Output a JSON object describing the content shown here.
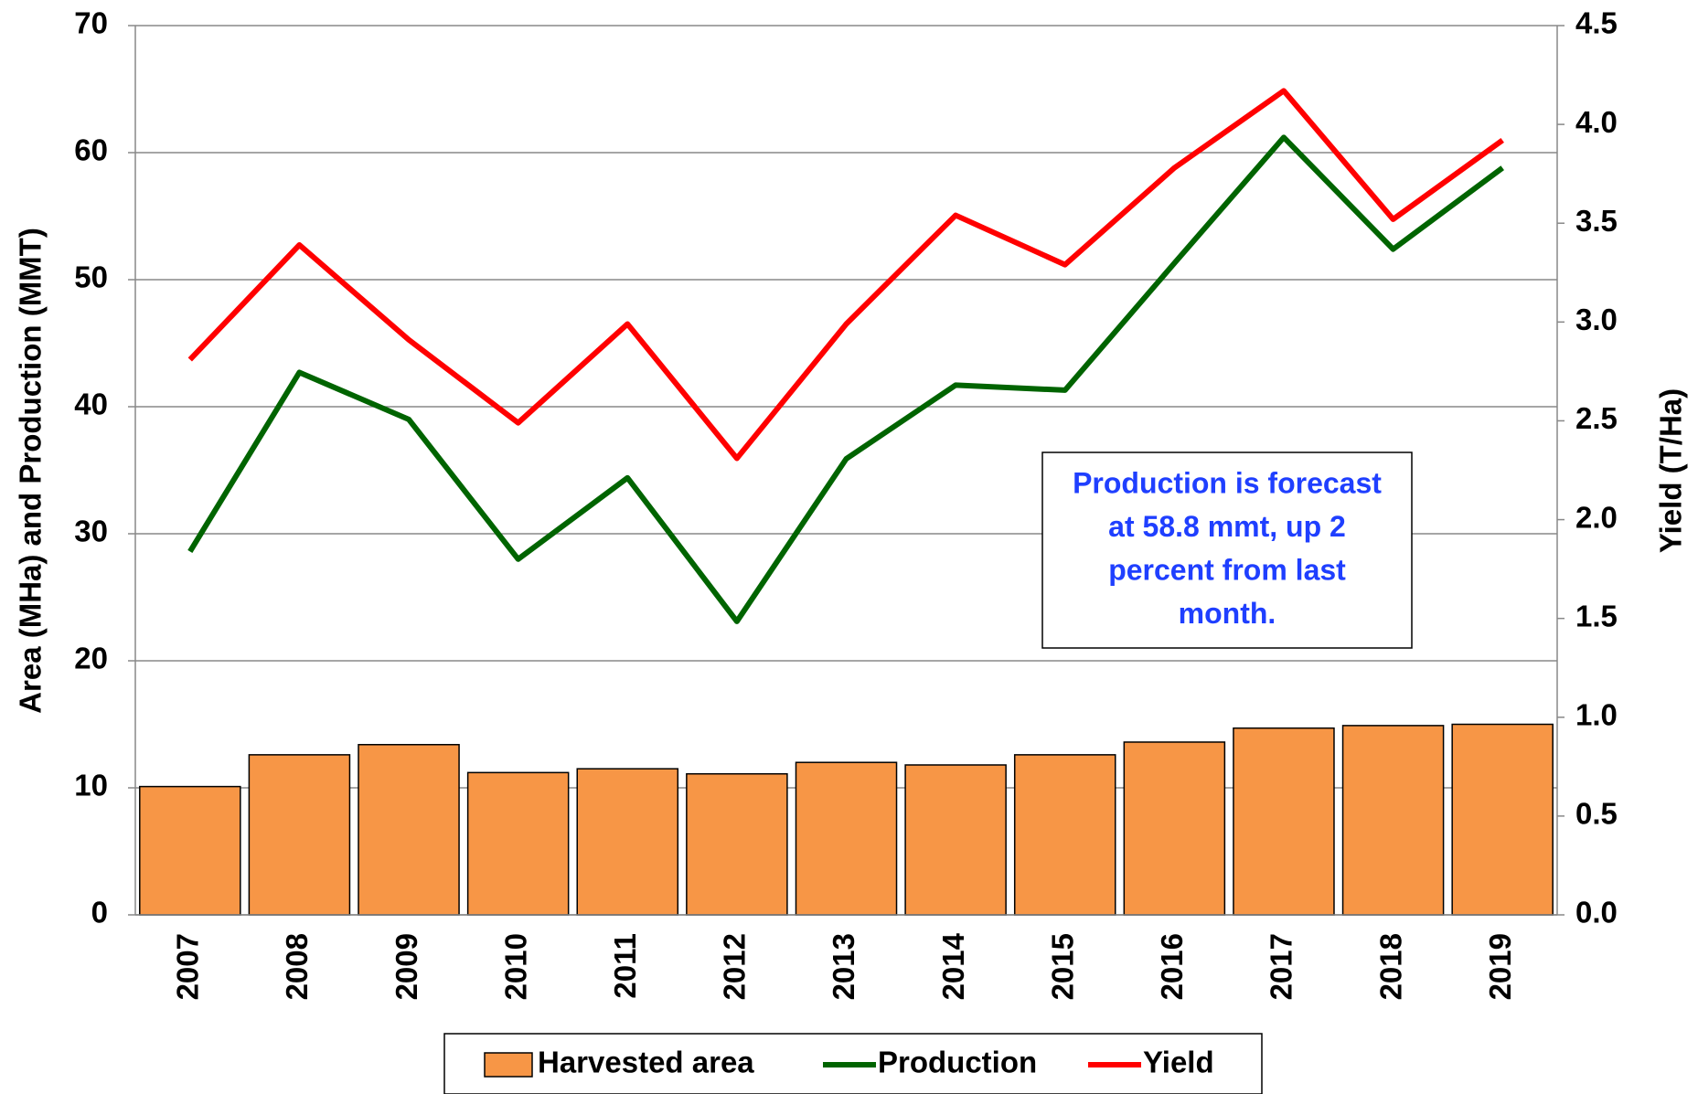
{
  "chart_data": {
    "type": "bar-line",
    "categories": [
      "2007",
      "2008",
      "2009",
      "2010",
      "2011",
      "2012",
      "2013",
      "2014",
      "2015",
      "2016",
      "2017",
      "2018",
      "2019"
    ],
    "series": [
      {
        "name": "Harvested area",
        "type": "bar",
        "color": "#f79646",
        "axis": "y",
        "values": [
          10.1,
          12.6,
          13.4,
          11.2,
          11.5,
          11.1,
          12.0,
          11.8,
          12.6,
          13.6,
          14.7,
          14.9,
          15.0
        ]
      },
      {
        "name": "Production",
        "type": "line",
        "color": "#006400",
        "axis": "y",
        "values": [
          28.6,
          42.7,
          39.0,
          28.0,
          34.4,
          23.1,
          35.9,
          41.7,
          41.3,
          51.3,
          61.2,
          52.4,
          58.8
        ]
      },
      {
        "name": "Yield",
        "type": "line",
        "color": "#ff0000",
        "axis": "y2",
        "values": [
          2.81,
          3.39,
          2.91,
          2.49,
          2.99,
          2.31,
          2.99,
          3.54,
          3.29,
          3.78,
          4.17,
          3.52,
          3.92
        ]
      }
    ],
    "ylabel": "Area (MHa) and Production (MMT)",
    "y2label": "Yield (T/Ha)",
    "ylim": [
      0,
      70
    ],
    "yticks": [
      0,
      10,
      20,
      30,
      40,
      50,
      60,
      70
    ],
    "y2lim": [
      0,
      4.5
    ],
    "y2ticks": [
      {
        "value": 0,
        "label": "0.0"
      },
      0.5,
      {
        "value": 1,
        "label": "1.0"
      },
      1.5,
      {
        "value": 2,
        "label": "2.0"
      },
      2.5,
      {
        "value": 3,
        "label": "3.0"
      },
      3.5,
      {
        "value": 4,
        "label": "4.0"
      },
      4.5
    ],
    "grid": true,
    "legend": "bottom",
    "annotation": [
      "Production is forecast",
      "at 58.8 mmt, up 2",
      "percent from last",
      "month."
    ]
  }
}
